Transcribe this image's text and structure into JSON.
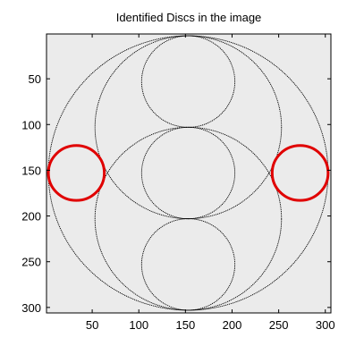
{
  "chart_data": {
    "type": "scatter",
    "title": "Identified Discs in the image",
    "xlabel": "",
    "ylabel": "",
    "xlim": [
      1,
      306
    ],
    "ylim": [
      1,
      306
    ],
    "y_reversed": true,
    "xticks": [
      50,
      100,
      150,
      200,
      250,
      300
    ],
    "yticks": [
      50,
      100,
      150,
      200,
      250,
      300
    ],
    "grid": false,
    "legend": "none",
    "background_color": "#ebebeb",
    "image_circles": [
      {
        "name": "outer",
        "cx": 153,
        "cy": 153,
        "r": 150
      },
      {
        "name": "top-small",
        "cx": 153,
        "cy": 53,
        "r": 50
      },
      {
        "name": "center-small",
        "cx": 153,
        "cy": 153,
        "r": 50
      },
      {
        "name": "bottom-small",
        "cx": 153,
        "cy": 253,
        "r": 50
      },
      {
        "name": "upper-medium",
        "cx": 153,
        "cy": 103,
        "r": 100
      },
      {
        "name": "lower-medium",
        "cx": 153,
        "cy": 203,
        "r": 100
      }
    ],
    "identified_discs": [
      {
        "cx": 33,
        "cy": 153,
        "r": 30
      },
      {
        "cx": 273,
        "cy": 153,
        "r": 30
      }
    ],
    "image_line_color": "#000000",
    "disc_color": "#e00000"
  }
}
